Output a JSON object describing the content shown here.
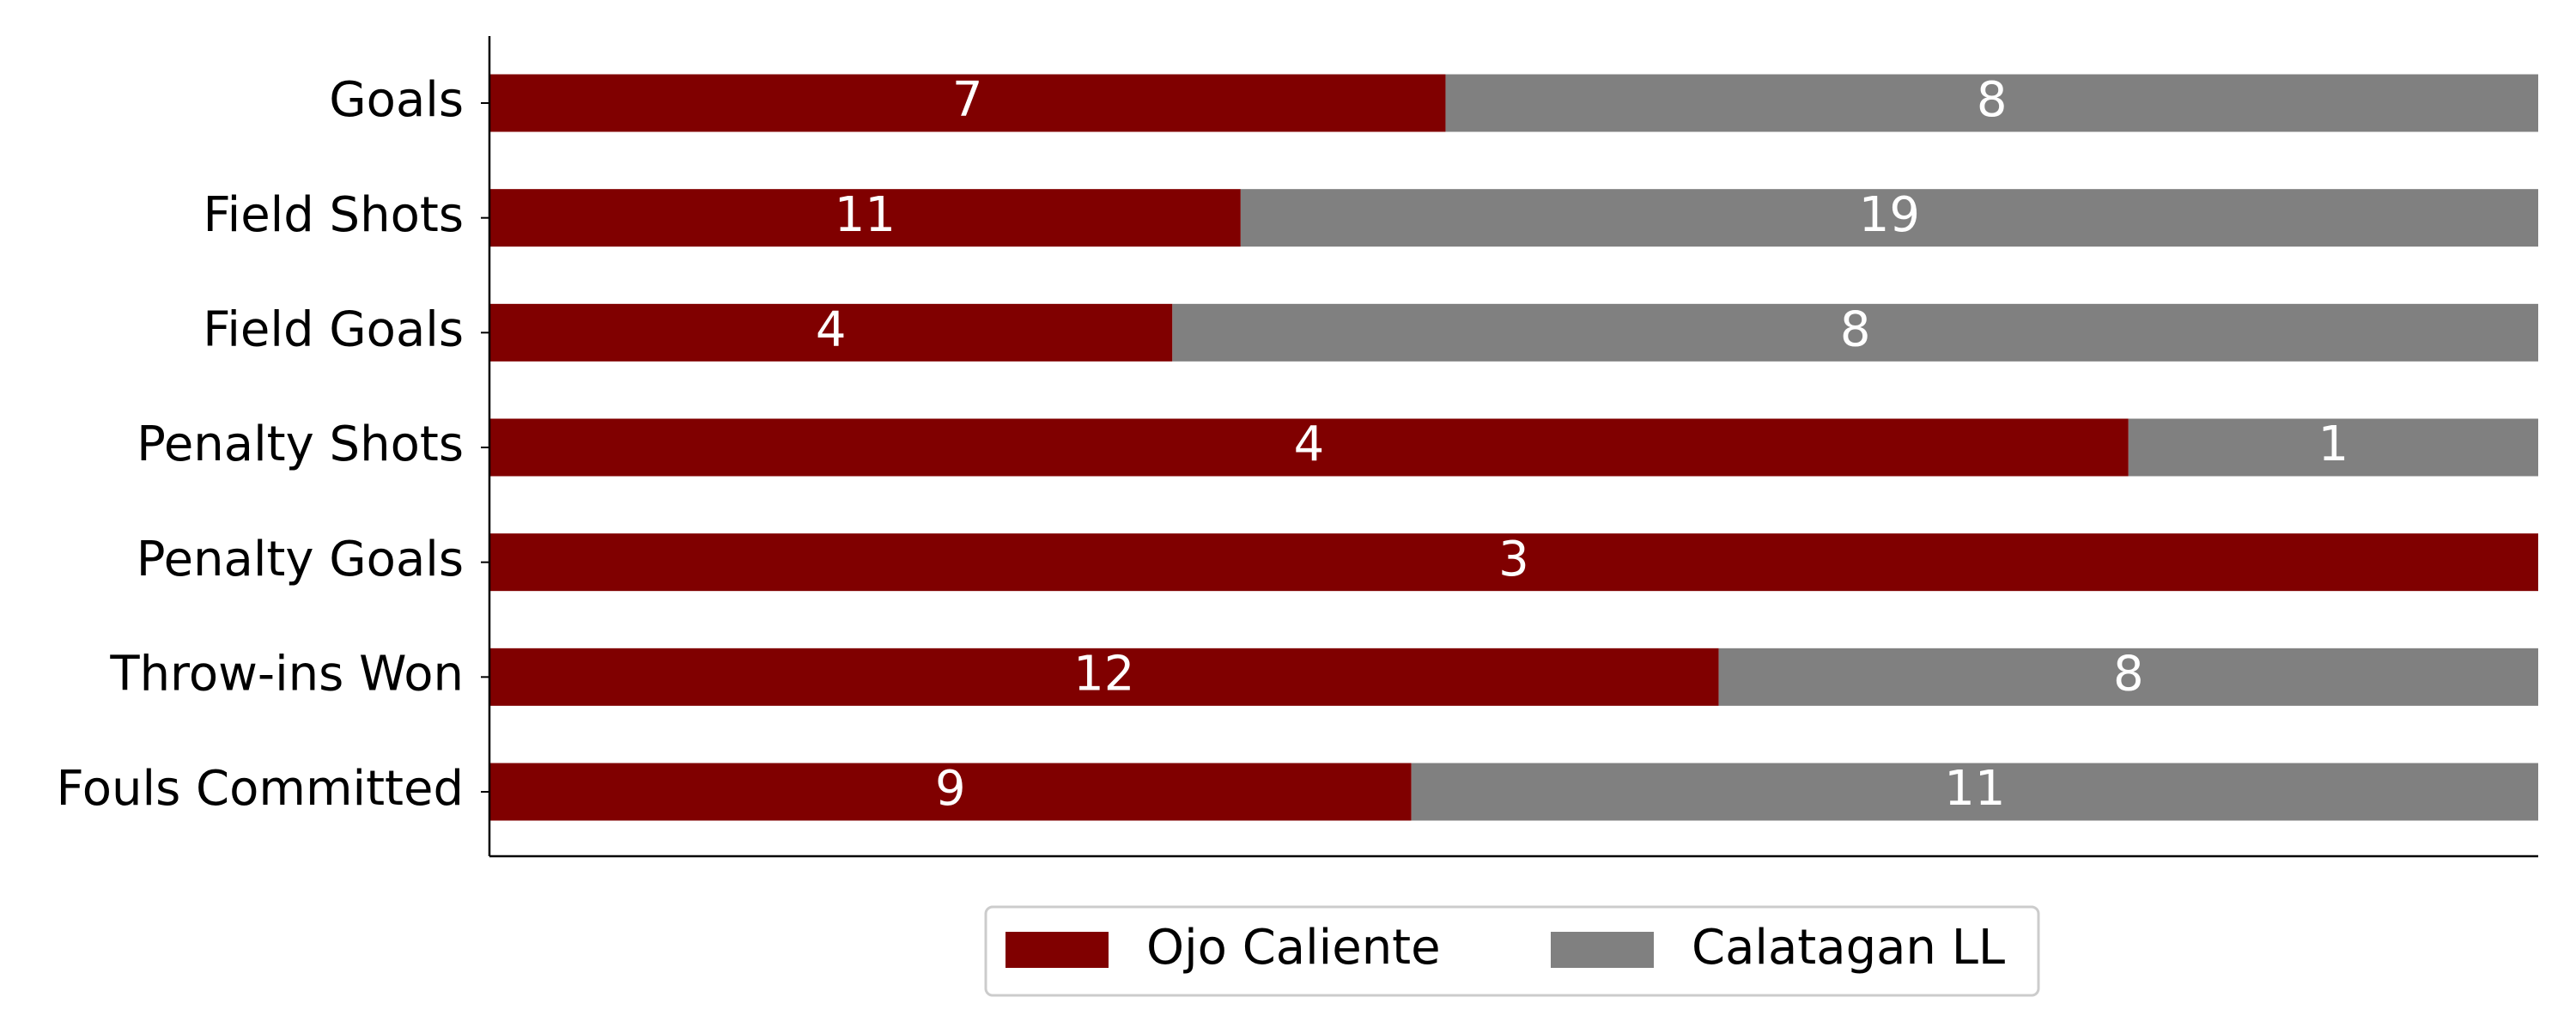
{
  "chart_data": {
    "type": "bar",
    "horizontal": true,
    "stacked": true,
    "normalized": true,
    "categories": [
      "Goals",
      "Field Shots",
      "Field Goals",
      "Penalty Shots",
      "Penalty Goals",
      "Throw-ins Won",
      "Fouls Committed"
    ],
    "series": [
      {
        "name": "Ojo Caliente",
        "color": "#800000",
        "values": [
          7,
          11,
          4,
          4,
          3,
          12,
          9
        ]
      },
      {
        "name": "Calatagan LL",
        "color": "#808080",
        "values": [
          8,
          19,
          8,
          1,
          0,
          8,
          11
        ]
      }
    ],
    "legend": "lower center"
  }
}
